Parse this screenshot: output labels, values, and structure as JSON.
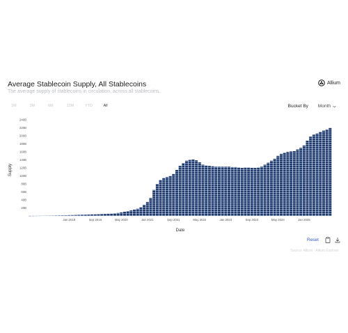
{
  "header": {
    "title": "Average Stablecoin Supply, All Stablecoins",
    "subtitle": "The average supply of stablecoins in circulation, across all stablecoins.",
    "brand": "Allium"
  },
  "controls": {
    "ranges": [
      "1M",
      "3M",
      "6M",
      "12M",
      "YTD",
      "All"
    ],
    "active_range": "All",
    "bucket_label": "Bucket By",
    "bucket_value": "Month"
  },
  "footer": {
    "reset_label": "Reset",
    "source": "Source: Allium · Allium Explorer"
  },
  "icons": {
    "brand": "allium-logo-icon",
    "bucket": "chevron-down-icon",
    "copy": "clipboard-icon",
    "download": "download-icon"
  },
  "colors": {
    "bar": "#1f3a6b",
    "bar_stripe": "#8ea5cc",
    "accent": "#3056d3"
  },
  "chart_data": {
    "type": "bar",
    "xlabel": "Date",
    "ylabel": "Supply",
    "ylim": [
      0,
      240
    ],
    "yticks": [
      20,
      40,
      60,
      80,
      100,
      120,
      140,
      160,
      180,
      200,
      220,
      240
    ],
    "ytick_labels": [
      "20B",
      "40B",
      "60B",
      "80B",
      "100B",
      "120B",
      "140B",
      "160B",
      "180B",
      "200B",
      "220B",
      "240B"
    ],
    "xticks": [
      "2019-01",
      "2019-09",
      "2020-05",
      "2021-01",
      "2021-09",
      "2022-05",
      "2023-01",
      "2023-09",
      "2024-05",
      "2025-01"
    ],
    "xtick_labels": [
      "Jan 2019",
      "Sep 2019",
      "May 2020",
      "Jan 2021",
      "Sep 2021",
      "May 2022",
      "Jan 2023",
      "Sep 2023",
      "May 2024",
      "Jan 2025"
    ],
    "grid": false,
    "legend": "none",
    "series": [
      {
        "x": [
          "2018-01",
          "2018-02",
          "2018-03",
          "2018-04",
          "2018-05",
          "2018-06",
          "2018-07",
          "2018-08",
          "2018-09",
          "2018-10",
          "2018-11",
          "2018-12",
          "2019-01",
          "2019-02",
          "2019-03",
          "2019-04",
          "2019-05",
          "2019-06",
          "2019-07",
          "2019-08",
          "2019-09",
          "2019-10",
          "2019-11",
          "2019-12",
          "2020-01",
          "2020-02",
          "2020-03",
          "2020-04",
          "2020-05",
          "2020-06",
          "2020-07",
          "2020-08",
          "2020-09",
          "2020-10",
          "2020-11",
          "2020-12",
          "2021-01",
          "2021-02",
          "2021-03",
          "2021-04",
          "2021-05",
          "2021-06",
          "2021-07",
          "2021-08",
          "2021-09",
          "2021-10",
          "2021-11",
          "2021-12",
          "2022-01",
          "2022-02",
          "2022-03",
          "2022-04",
          "2022-05",
          "2022-06",
          "2022-07",
          "2022-08",
          "2022-09",
          "2022-10",
          "2022-11",
          "2022-12",
          "2023-01",
          "2023-02",
          "2023-03",
          "2023-04",
          "2023-05",
          "2023-06",
          "2023-07",
          "2023-08",
          "2023-09",
          "2023-10",
          "2023-11",
          "2023-12",
          "2024-01",
          "2024-02",
          "2024-03",
          "2024-04",
          "2024-05",
          "2024-06",
          "2024-07",
          "2024-08",
          "2024-09",
          "2024-10",
          "2024-11",
          "2024-12",
          "2025-01",
          "2025-02",
          "2025-03",
          "2025-04",
          "2025-05",
          "2025-06",
          "2025-07",
          "2025-08",
          "2025-09"
        ],
        "values": [
          0.3,
          0.4,
          0.5,
          0.6,
          0.7,
          0.8,
          0.9,
          1,
          1.2,
          1.4,
          1.6,
          1.8,
          2,
          2.2,
          2.5,
          2.8,
          3,
          3.2,
          3.5,
          3.8,
          4,
          4.3,
          4.6,
          5,
          5.5,
          6,
          6.5,
          7.5,
          9,
          10.5,
          12,
          14,
          16,
          18,
          22,
          28,
          35,
          45,
          65,
          80,
          90,
          95,
          97,
          100,
          105,
          115,
          125,
          132,
          138,
          140,
          141,
          139,
          134,
          128,
          126,
          125,
          124,
          123,
          123,
          123,
          123,
          123,
          122,
          122,
          121,
          120,
          121,
          121,
          120,
          120,
          121,
          123,
          128,
          133,
          138,
          143,
          150,
          155,
          158,
          160,
          161,
          162,
          166,
          170,
          176,
          188,
          198,
          203,
          206,
          210,
          213,
          216,
          220
        ]
      }
    ]
  }
}
